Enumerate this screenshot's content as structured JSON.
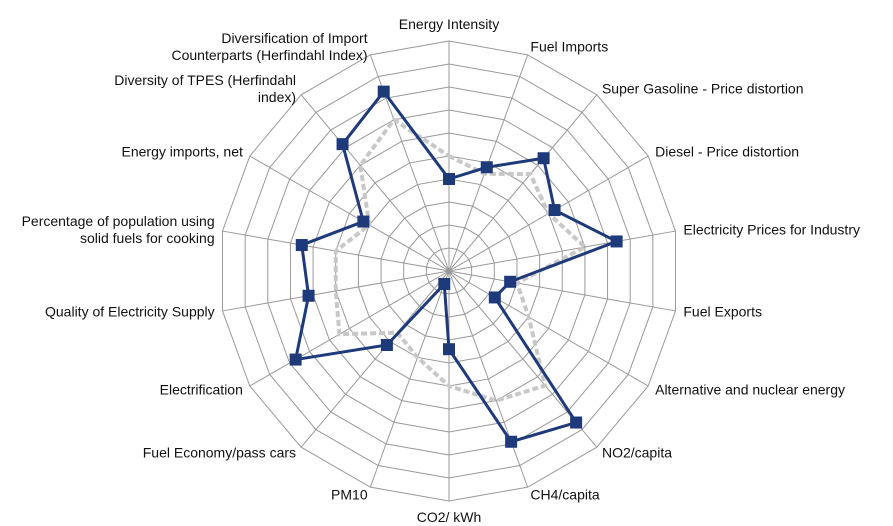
{
  "chart_data": {
    "type": "radar",
    "categories": [
      "Energy Intensity",
      "Fuel Imports",
      "Super Gasoline - Price distortion",
      "Diesel  - Price distortion",
      "Electricity Prices for Industry",
      "Fuel Exports",
      "Alternative and nuclear energy",
      "NO2/capita",
      "CH4/capita",
      "CO2/ kWh",
      "PM10",
      "Fuel Economy/pass cars",
      "Electrification",
      "Quality of Electricity Supply",
      "Percentage of population using solid fuels for cooking",
      "Energy imports, net",
      "Diversity of TPES (Herfindahl index)",
      "Diversification of Import Counterparts (Herfindahl Index)"
    ],
    "series": [
      {
        "color": "#c8c8c8",
        "values": [
          0.5,
          0.45,
          0.55,
          0.5,
          0.6,
          0.3,
          0.4,
          0.65,
          0.6,
          0.5,
          0.4,
          0.35,
          0.55,
          0.5,
          0.5,
          0.4,
          0.6,
          0.7
        ]
      },
      {
        "color": "#1f3a7a",
        "values": [
          0.4,
          0.48,
          0.64,
          0.53,
          0.74,
          0.27,
          0.23,
          0.86,
          0.79,
          0.34,
          0.06,
          0.42,
          0.77,
          0.62,
          0.65,
          0.43,
          0.72,
          0.83
        ]
      }
    ],
    "ylim": [
      0,
      1
    ],
    "yticks": [
      0,
      0.1,
      0.2,
      0.3,
      0.4,
      0.5,
      0.6,
      0.7,
      0.8,
      0.9,
      1
    ]
  }
}
